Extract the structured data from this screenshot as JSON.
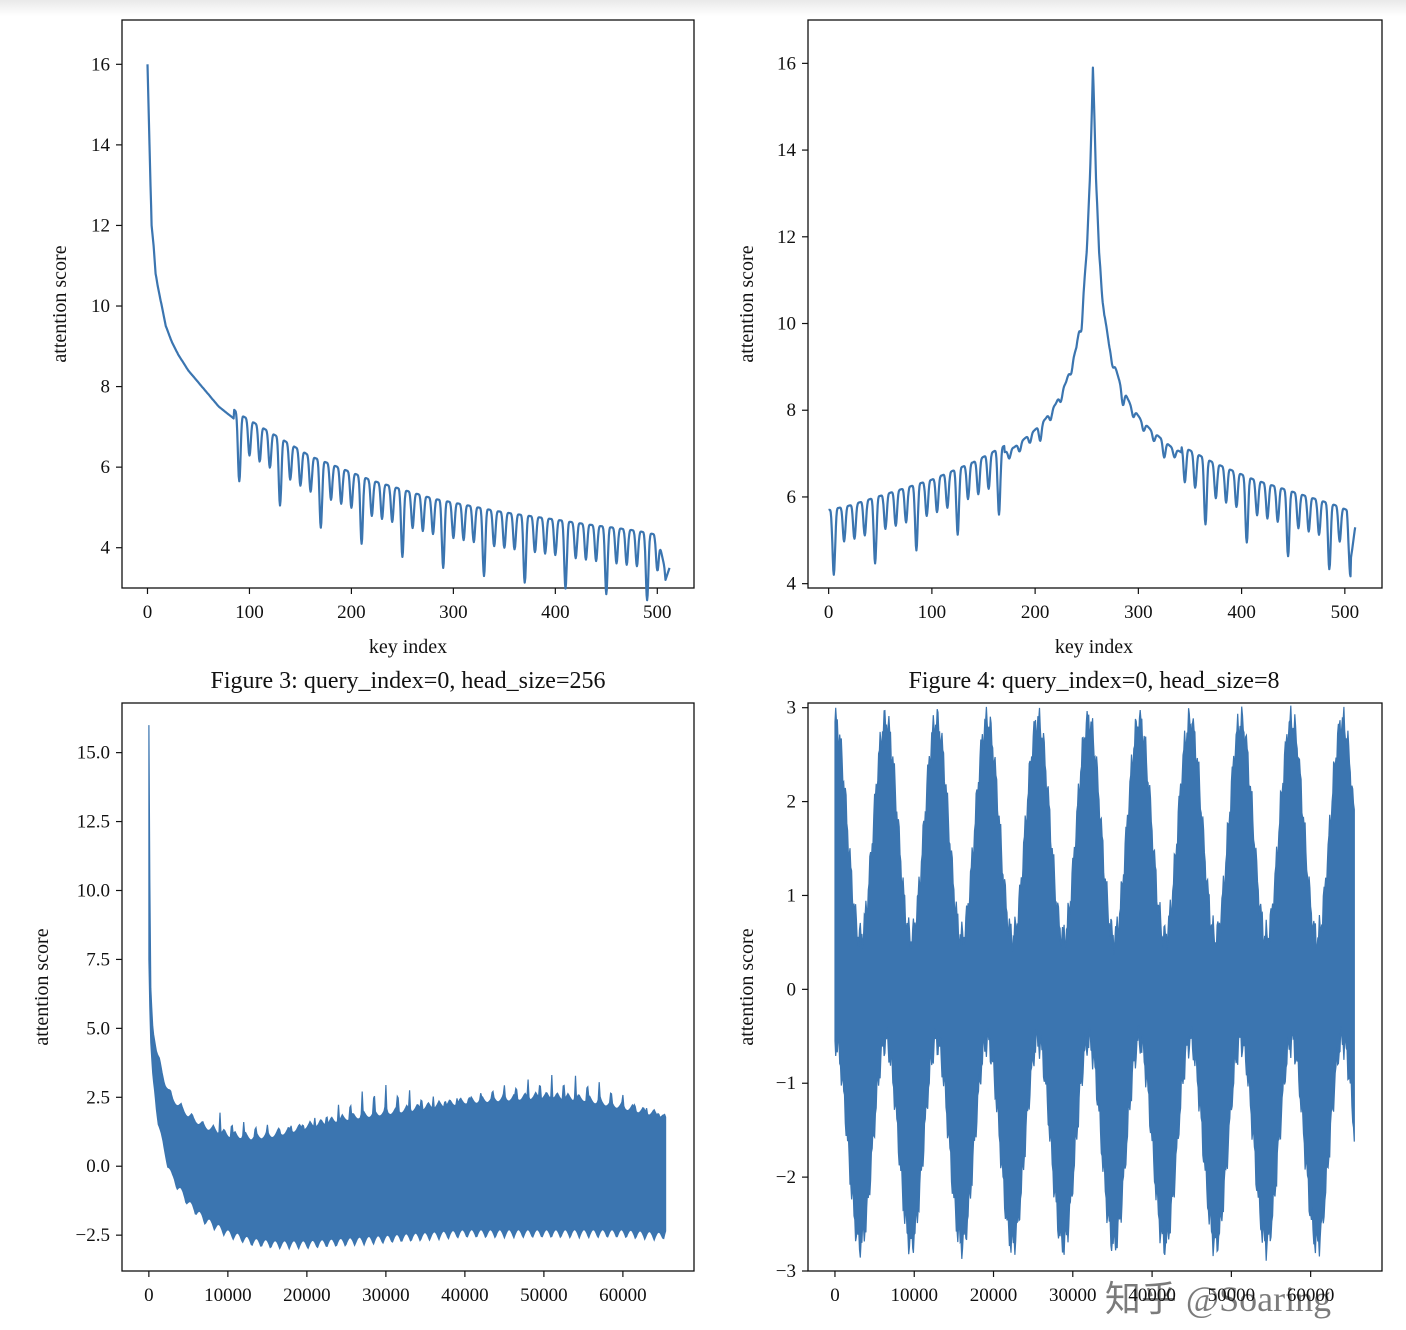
{
  "colors": {
    "series": "#3b75b0",
    "axis": "#111111",
    "background": "#ffffff"
  },
  "captions": {
    "top_left": "Figure 3: query_index=0, head_size=256",
    "top_right": "Figure 4: query_index=0, head_size=8"
  },
  "watermark": "知乎 @Soaring",
  "chart_data": [
    {
      "type": "line",
      "title": "",
      "xlabel": "key index",
      "ylabel": "attention score",
      "xlim": [
        -25,
        536
      ],
      "ylim": [
        3.0,
        17.1
      ],
      "xticks": [
        0,
        100,
        200,
        300,
        400,
        500
      ],
      "xtick_labels": [
        "0",
        "100",
        "200",
        "300",
        "400",
        "500"
      ],
      "yticks": [
        4,
        6,
        8,
        10,
        12,
        14,
        16
      ],
      "ytick_labels": [
        "4",
        "6",
        "8",
        "10",
        "12",
        "14",
        "16"
      ],
      "series": [
        {
          "x": [
            0,
            2,
            4,
            6,
            8,
            10,
            14,
            18,
            24,
            30,
            40,
            50,
            60,
            70,
            80,
            90,
            100,
            110,
            120,
            130,
            140,
            150,
            160,
            170,
            180,
            190,
            200,
            220,
            240,
            260,
            280,
            300,
            320,
            340,
            360,
            380,
            400,
            420,
            440,
            460,
            480,
            500,
            508,
            512
          ],
          "y": [
            16.0,
            14.0,
            12.0,
            11.5,
            10.8,
            10.5,
            10.0,
            9.5,
            9.1,
            8.8,
            8.4,
            8.1,
            7.8,
            7.5,
            7.3,
            7.1,
            6.95,
            6.8,
            6.65,
            6.5,
            6.35,
            6.2,
            6.05,
            5.95,
            5.85,
            5.75,
            5.65,
            5.45,
            5.3,
            5.15,
            5.0,
            4.9,
            4.8,
            4.7,
            4.62,
            4.55,
            4.48,
            4.4,
            4.33,
            4.27,
            4.2,
            4.1,
            3.2,
            3.5
          ],
          "oscillation": {
            "start": 85,
            "period": 10,
            "amplitude": 0.55
          }
        }
      ]
    },
    {
      "type": "line",
      "title": "",
      "xlabel": "key index",
      "ylabel": "attention score",
      "xlim": [
        -20,
        536
      ],
      "ylim": [
        3.9,
        17.0
      ],
      "xticks": [
        0,
        100,
        200,
        300,
        400,
        500
      ],
      "xtick_labels": [
        "0",
        "100",
        "200",
        "300",
        "400",
        "500"
      ],
      "yticks": [
        4,
        6,
        8,
        10,
        12,
        14,
        16
      ],
      "ytick_labels": [
        "4",
        "6",
        "8",
        "10",
        "12",
        "14",
        "16"
      ],
      "series": [
        {
          "x": [
            0,
            20,
            40,
            60,
            80,
            100,
            120,
            140,
            160,
            180,
            200,
            210,
            220,
            230,
            240,
            245,
            250,
            253,
            256,
            259,
            262,
            267,
            272,
            282,
            292,
            302,
            312,
            332,
            352,
            372,
            392,
            412,
            432,
            452,
            472,
            492,
            502,
            506,
            510
          ],
          "y": [
            5.5,
            5.6,
            5.75,
            5.9,
            6.05,
            6.2,
            6.4,
            6.6,
            6.85,
            7.1,
            7.5,
            7.75,
            8.1,
            8.6,
            9.4,
            10.2,
            11.6,
            13.3,
            16.0,
            13.3,
            11.6,
            10.2,
            9.4,
            8.6,
            8.1,
            7.75,
            7.5,
            7.1,
            6.85,
            6.6,
            6.4,
            6.2,
            6.05,
            5.9,
            5.75,
            5.6,
            5.5,
            4.6,
            5.3
          ],
          "oscillation": {
            "start": 0,
            "period": 10,
            "amplitude": 0.5
          }
        }
      ]
    },
    {
      "type": "line",
      "title": "",
      "xlabel": "",
      "ylabel": "attention score",
      "xlim": [
        -3400,
        69000
      ],
      "ylim": [
        -3.8,
        16.8
      ],
      "xticks": [
        0,
        10000,
        20000,
        30000,
        40000,
        50000,
        60000
      ],
      "xtick_labels": [
        "0",
        "10000",
        "20000",
        "30000",
        "40000",
        "50000",
        "60000"
      ],
      "yticks": [
        -2.5,
        0.0,
        2.5,
        5.0,
        7.5,
        10.0,
        12.5,
        15.0
      ],
      "ytick_labels": [
        "−2.5",
        "0.0",
        "2.5",
        "5.0",
        "7.5",
        "10.0",
        "12.5",
        "15.0"
      ],
      "series": [
        {
          "x": [
            0,
            200,
            500,
            1000,
            2000,
            3000,
            5000,
            7000,
            10000,
            13000,
            16000,
            20000,
            25000,
            30000,
            35000,
            40000,
            45000,
            50000,
            55000,
            60000,
            65000,
            65500
          ],
          "upper": [
            16.0,
            6.8,
            5.2,
            4.3,
            3.2,
            2.6,
            2.0,
            1.6,
            1.3,
            1.2,
            1.3,
            1.6,
            1.9,
            2.1,
            2.3,
            2.5,
            2.6,
            2.7,
            2.6,
            2.3,
            2.0,
            1.8
          ],
          "lower": [
            7.5,
            4.5,
            3.0,
            1.8,
            0.3,
            -0.6,
            -1.5,
            -2.1,
            -2.6,
            -2.9,
            -3.0,
            -3.0,
            -2.9,
            -2.8,
            -2.7,
            -2.6,
            -2.6,
            -2.6,
            -2.6,
            -2.6,
            -2.7,
            -2.5
          ],
          "spike_period": 1500
        }
      ]
    },
    {
      "type": "line",
      "title": "",
      "xlabel": "",
      "ylabel": "attention score",
      "xlim": [
        -3400,
        69000
      ],
      "ylim": [
        -3.0,
        3.05
      ],
      "xticks": [
        0,
        10000,
        20000,
        30000,
        40000,
        50000,
        60000
      ],
      "xtick_labels": [
        "0",
        "10000",
        "20000",
        "30000",
        "40000",
        "50000",
        "60000"
      ],
      "yticks": [
        -3,
        -2,
        -1,
        0,
        1,
        2,
        3
      ],
      "ytick_labels": [
        "−3",
        "−2",
        "−1",
        "0",
        "1",
        "2",
        "3"
      ],
      "series": [
        {
          "x_start": 0,
          "x_end": 65535,
          "peaks": [
            0,
            6400,
            12800,
            19200,
            25600,
            32000,
            38400,
            44800,
            51200,
            57600,
            64000
          ],
          "troughs": [
            3200,
            9600,
            16000,
            22400,
            28800,
            35200,
            41600,
            48000,
            54400,
            60800
          ],
          "upper_high": 2.85,
          "upper_low": 0.55,
          "lower_high": -0.55,
          "lower_low": -2.7
        }
      ]
    }
  ]
}
